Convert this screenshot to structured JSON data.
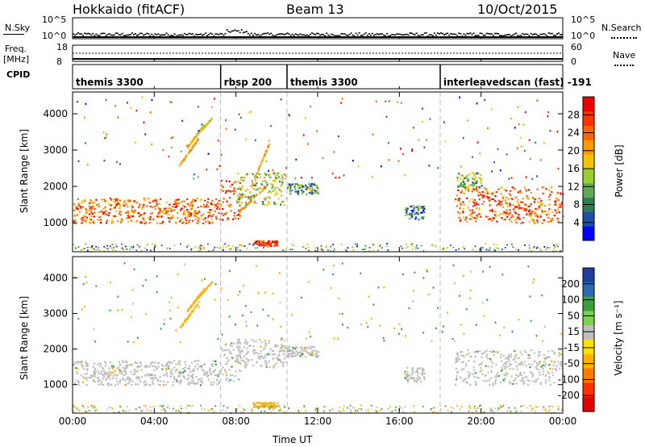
{
  "header": {
    "station": "Hokkaido (fitACF)",
    "beam": "Beam 13",
    "date": "10/Oct/2015"
  },
  "strip_panels": {
    "nsky": {
      "label": "N.Sky",
      "left_ticks": [
        "10^5",
        "10^0"
      ],
      "right_ticks": [
        "10^5",
        "10^0"
      ],
      "right_label": "N.Search"
    },
    "freq": {
      "label_top": "Freq.",
      "label_unit": "[MHz]",
      "left_ticks": [
        "18",
        "8"
      ],
      "right_ticks": [
        "60",
        "0"
      ],
      "right_label": "Nave"
    },
    "cpid": {
      "label": "CPID"
    }
  },
  "cpid_modes": [
    {
      "name": "themis 3300",
      "start_h": 0.0
    },
    {
      "name": "rbsp 200",
      "start_h": 7.25
    },
    {
      "name": "themis 3300",
      "start_h": 10.5
    },
    {
      "name": "interleavedscan (fast) -191",
      "start_h": 18.0
    }
  ],
  "x_axis": {
    "label": "Time UT",
    "ticks": [
      "00:00",
      "04:00",
      "08:00",
      "12:00",
      "16:00",
      "20:00",
      "00:00"
    ],
    "range_h": [
      0,
      24
    ]
  },
  "colors": {
    "power": [
      "#0000ff",
      "#1f4ea8",
      "#2e7d4f",
      "#5fa85a",
      "#9acd32",
      "#f5c400",
      "#ff9900",
      "#ff6600",
      "#ff3300",
      "#ee0000"
    ],
    "velocity": [
      "#1f3fa0",
      "#2e6ab0",
      "#3c9f3c",
      "#7fcf50",
      "#bfbfbf",
      "#ffe000",
      "#ffb000",
      "#ff7a00",
      "#ff3000",
      "#e00000"
    ]
  },
  "chart_data": [
    {
      "type": "heatmap",
      "title": "Power",
      "xlabel": "Time UT",
      "ylabel": "Slant Range [km]",
      "xlim": [
        0,
        24
      ],
      "ylim": [
        200,
        4600
      ],
      "yticks": [
        "1000",
        "2000",
        "3000",
        "4000"
      ],
      "colorbar": {
        "label": "Power [dB]",
        "ticks": [
          "4",
          "8",
          "12",
          "16",
          "20",
          "24",
          "28"
        ],
        "range": [
          0,
          32
        ]
      },
      "bands": [
        {
          "t0": 0.0,
          "t1": 7.2,
          "r0": 1000,
          "r1": 1700,
          "value": 24
        },
        {
          "t0": 7.2,
          "t1": 8.2,
          "r0": 1100,
          "r1": 2200,
          "value": 26
        },
        {
          "t0": 8.0,
          "t1": 10.5,
          "r0": 1500,
          "r1": 2400,
          "value": 14
        },
        {
          "t0": 10.5,
          "t1": 12.0,
          "r0": 1800,
          "r1": 2100,
          "value": 10
        },
        {
          "t0": 16.2,
          "t1": 17.2,
          "r0": 1100,
          "r1": 1500,
          "value": 8
        },
        {
          "t0": 8.8,
          "t1": 10.0,
          "r0": 380,
          "r1": 520,
          "value": 28
        },
        {
          "t0": 18.7,
          "t1": 24.0,
          "r0": 1000,
          "r1": 2000,
          "value": 24
        },
        {
          "t0": 18.8,
          "t1": 20.0,
          "r0": 2000,
          "r1": 2400,
          "value": 12
        }
      ],
      "streaks": [
        {
          "t0": 5.2,
          "t1": 6.1,
          "r0": 2600,
          "r1": 3300,
          "value": 20
        },
        {
          "t0": 5.6,
          "t1": 6.4,
          "r0": 3100,
          "r1": 3700,
          "value": 18
        },
        {
          "t0": 6.0,
          "t1": 6.8,
          "r0": 3400,
          "r1": 3900,
          "value": 16
        },
        {
          "t0": 8.7,
          "t1": 9.6,
          "r0": 2000,
          "r1": 3200,
          "value": 20
        },
        {
          "t0": 8.1,
          "t1": 9.4,
          "r0": 1300,
          "r1": 2000,
          "value": 22
        },
        {
          "t0": 19.8,
          "t1": 22.6,
          "r0": 1800,
          "r1": 1300,
          "value": 26
        }
      ]
    },
    {
      "type": "heatmap",
      "title": "Velocity",
      "xlabel": "Time UT",
      "ylabel": "Slant Range [km]",
      "xlim": [
        0,
        24
      ],
      "ylim": [
        200,
        4600
      ],
      "yticks": [
        "1000",
        "2000",
        "3000",
        "4000"
      ],
      "colorbar": {
        "label": "Velocity [m s⁻¹]",
        "ticks": [
          "200",
          "100",
          "50",
          "15",
          "-15",
          "-50",
          "-100",
          "-200"
        ]
      },
      "bands": [
        {
          "t0": 0.0,
          "t1": 7.2,
          "r0": 1000,
          "r1": 1700,
          "value": 0
        },
        {
          "t0": 7.2,
          "t1": 8.2,
          "r0": 1100,
          "r1": 2200,
          "value": 0
        },
        {
          "t0": 8.0,
          "t1": 10.5,
          "r0": 1500,
          "r1": 2300,
          "value": 0
        },
        {
          "t0": 10.5,
          "t1": 12.0,
          "r0": 1800,
          "r1": 2100,
          "value": 0
        },
        {
          "t0": 16.2,
          "t1": 17.2,
          "r0": 1100,
          "r1": 1500,
          "value": 0
        },
        {
          "t0": 8.8,
          "t1": 10.0,
          "r0": 380,
          "r1": 520,
          "value": -50
        },
        {
          "t0": 18.7,
          "t1": 24.0,
          "r0": 1000,
          "r1": 2000,
          "value": 0
        }
      ],
      "streaks": [
        {
          "t0": 5.2,
          "t1": 6.1,
          "r0": 2600,
          "r1": 3300,
          "value": -50
        },
        {
          "t0": 5.6,
          "t1": 6.4,
          "r0": 3100,
          "r1": 3700,
          "value": -20
        },
        {
          "t0": 6.0,
          "t1": 6.8,
          "r0": 3400,
          "r1": 3900,
          "value": -50
        }
      ]
    }
  ]
}
